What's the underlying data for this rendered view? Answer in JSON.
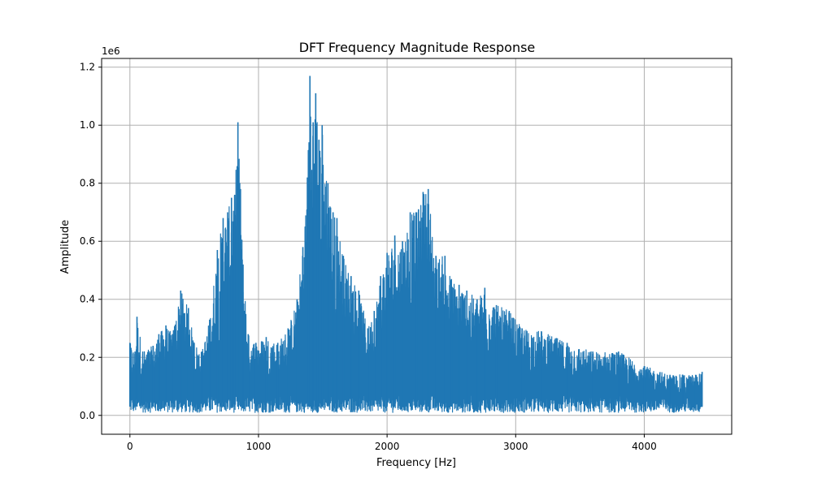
{
  "chart_data": {
    "type": "line",
    "title": "DFT Frequency Magnitude Response",
    "xlabel": "Frequency [Hz]",
    "ylabel": "Amplitude",
    "y_offset_label": "1e6",
    "xlim": [
      -220,
      4680
    ],
    "ylim": [
      -0.065,
      1.23
    ],
    "y_scale": 1000000,
    "x_ticks": [
      0,
      1000,
      2000,
      3000,
      4000
    ],
    "x_tick_labels": [
      "0",
      "1000",
      "2000",
      "3000",
      "4000"
    ],
    "y_ticks": [
      0.0,
      0.2,
      0.4,
      0.6,
      0.8,
      1.0,
      1.2
    ],
    "y_tick_labels": [
      "0.0",
      "0.2",
      "0.4",
      "0.6",
      "0.8",
      "1.0",
      "1.2"
    ],
    "grid": true,
    "line_color": "#1f77b4",
    "series": [
      {
        "x_range": [
          0,
          4450
        ],
        "envelope_points": [
          [
            0,
            0.25
          ],
          [
            40,
            0.22
          ],
          [
            55,
            0.34
          ],
          [
            100,
            0.22
          ],
          [
            180,
            0.24
          ],
          [
            225,
            0.28
          ],
          [
            280,
            0.31
          ],
          [
            330,
            0.28
          ],
          [
            395,
            0.43
          ],
          [
            455,
            0.37
          ],
          [
            500,
            0.25
          ],
          [
            560,
            0.22
          ],
          [
            620,
            0.33
          ],
          [
            680,
            0.57
          ],
          [
            725,
            0.68
          ],
          [
            760,
            0.7
          ],
          [
            790,
            0.75
          ],
          [
            815,
            0.76
          ],
          [
            840,
            1.01
          ],
          [
            860,
            0.78
          ],
          [
            880,
            0.52
          ],
          [
            920,
            0.28
          ],
          [
            980,
            0.25
          ],
          [
            1060,
            0.27
          ],
          [
            1150,
            0.25
          ],
          [
            1230,
            0.3
          ],
          [
            1300,
            0.4
          ],
          [
            1345,
            0.58
          ],
          [
            1380,
            0.82
          ],
          [
            1400,
            1.17
          ],
          [
            1425,
            1.01
          ],
          [
            1445,
            1.11
          ],
          [
            1470,
            0.95
          ],
          [
            1495,
            1.0
          ],
          [
            1540,
            0.8
          ],
          [
            1580,
            0.7
          ],
          [
            1610,
            0.68
          ],
          [
            1660,
            0.55
          ],
          [
            1720,
            0.48
          ],
          [
            1780,
            0.43
          ],
          [
            1850,
            0.3
          ],
          [
            1900,
            0.36
          ],
          [
            1950,
            0.48
          ],
          [
            2000,
            0.56
          ],
          [
            2060,
            0.62
          ],
          [
            2120,
            0.6
          ],
          [
            2180,
            0.7
          ],
          [
            2230,
            0.7
          ],
          [
            2280,
            0.77
          ],
          [
            2320,
            0.78
          ],
          [
            2380,
            0.55
          ],
          [
            2450,
            0.55
          ],
          [
            2500,
            0.47
          ],
          [
            2560,
            0.45
          ],
          [
            2620,
            0.43
          ],
          [
            2700,
            0.4
          ],
          [
            2760,
            0.44
          ],
          [
            2850,
            0.38
          ],
          [
            2950,
            0.36
          ],
          [
            3050,
            0.3
          ],
          [
            3200,
            0.29
          ],
          [
            3400,
            0.25
          ],
          [
            3600,
            0.22
          ],
          [
            3800,
            0.22
          ],
          [
            4000,
            0.17
          ],
          [
            4200,
            0.14
          ],
          [
            4300,
            0.14
          ],
          [
            4400,
            0.14
          ],
          [
            4450,
            0.15
          ]
        ],
        "floor": 0.01
      }
    ]
  }
}
